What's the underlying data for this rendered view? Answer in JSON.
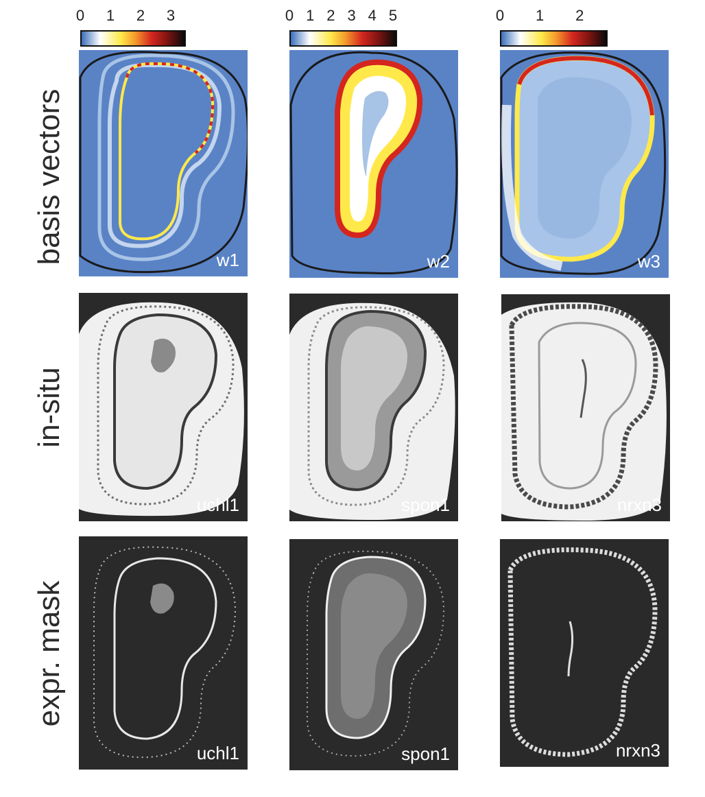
{
  "row_labels": {
    "basis": "basis vectors",
    "insitu": "in-situ",
    "mask": "expr. mask"
  },
  "colorbars": [
    {
      "ticks": [
        "0",
        "1",
        "2",
        "3"
      ],
      "max": 3.5
    },
    {
      "ticks": [
        "0",
        "1",
        "2",
        "3",
        "4",
        "5"
      ],
      "max": 5.2
    },
    {
      "ticks": [
        "0",
        "1",
        "2"
      ],
      "max": 2.7
    }
  ],
  "colormap": {
    "low": "#3b6fba",
    "white": "#ffffff",
    "yellow": "#ffe94a",
    "red": "#d4261f",
    "black": "#0a0a0a"
  },
  "basis_panels": [
    {
      "label": "w1"
    },
    {
      "label": "w2"
    },
    {
      "label": "w3"
    }
  ],
  "insitu_panels": [
    {
      "label": "uchl1"
    },
    {
      "label": "spon1"
    },
    {
      "label": "nrxn3"
    }
  ],
  "mask_panels": [
    {
      "label": "uchl1"
    },
    {
      "label": "spon1"
    },
    {
      "label": "nrxn3"
    }
  ],
  "colors": {
    "heatmap_background": "#5a83c6",
    "image_background": "#2a2a2a",
    "tissue": "#f2f2f2",
    "outline": "#1a1a1a"
  }
}
